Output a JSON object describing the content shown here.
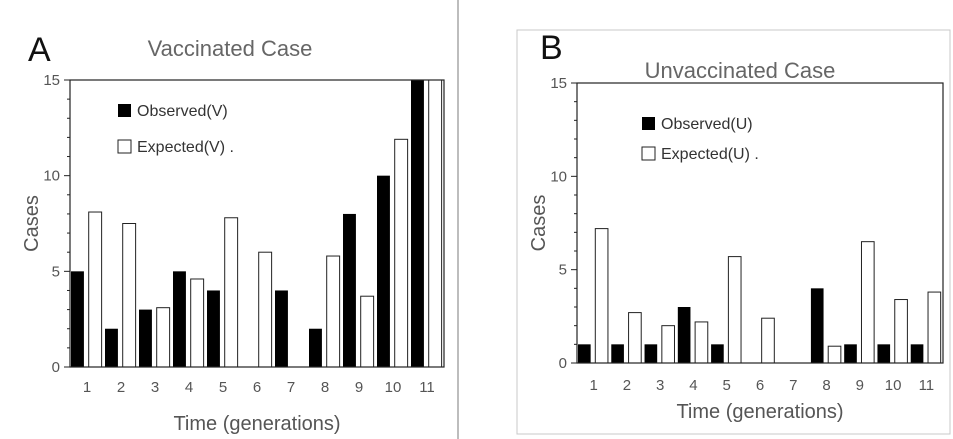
{
  "chart_data": [
    {
      "type": "bar",
      "panel_label": "A",
      "title": "Vaccinated Case",
      "xlabel": "Time (generations)",
      "ylabel": "Cases",
      "ylim": [
        0,
        15
      ],
      "yticks": [
        "0",
        "5",
        "10",
        "15"
      ],
      "categories": [
        "1",
        "2",
        "3",
        "4",
        "5",
        "6",
        "7",
        "8",
        "9",
        "10",
        "11"
      ],
      "series": [
        {
          "name": "Observed(V)",
          "fill": "#000000",
          "values": [
            5,
            2,
            3,
            5,
            4,
            0,
            4,
            2,
            8,
            10,
            15
          ]
        },
        {
          "name": "Expected(V)",
          "fill": "#ffffff",
          "values": [
            8.1,
            7.5,
            3.1,
            4.6,
            7.8,
            6.0,
            0,
            5.8,
            3.7,
            11.9,
            15
          ]
        }
      ],
      "legend": {
        "labels": [
          "Observed(V)",
          "Expected(V) ."
        ],
        "placement": "top-left"
      }
    },
    {
      "type": "bar",
      "panel_label": "B",
      "title": "Unvaccinated Case",
      "xlabel": "Time (generations)",
      "ylabel": "Cases",
      "ylim": [
        0,
        15
      ],
      "yticks": [
        "0",
        "5",
        "10",
        "15"
      ],
      "categories": [
        "1",
        "2",
        "3",
        "4",
        "5",
        "6",
        "7",
        "8",
        "9",
        "10",
        "11"
      ],
      "series": [
        {
          "name": "Observed(U)",
          "fill": "#000000",
          "values": [
            1,
            1,
            1,
            3,
            1,
            0,
            0,
            4,
            1,
            1,
            1
          ]
        },
        {
          "name": "Expected(U)",
          "fill": "#ffffff",
          "values": [
            7.2,
            2.7,
            2.0,
            2.2,
            5.7,
            2.4,
            0,
            0.9,
            6.5,
            3.4,
            3.8
          ]
        }
      ],
      "legend": {
        "labels": [
          "Observed(U)",
          "Expected(U) ."
        ],
        "placement": "top-left"
      }
    }
  ]
}
